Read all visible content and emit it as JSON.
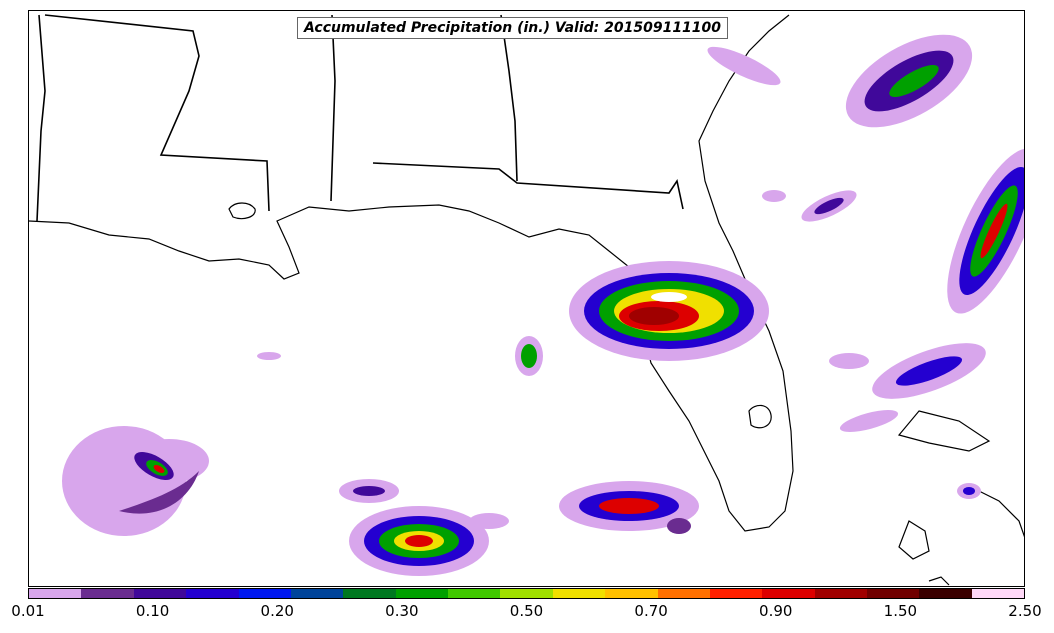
{
  "title": "Accumulated Precipitation (in.) Valid: 201509111100",
  "colorbar": {
    "colors": [
      "#d8a6ec",
      "#6a2c90",
      "#40089a",
      "#2400d0",
      "#0018f0",
      "#00449a",
      "#007820",
      "#00a000",
      "#40c800",
      "#a0e000",
      "#f0e000",
      "#ffc000",
      "#ff7000",
      "#ff2000",
      "#dd0000",
      "#a00000",
      "#700000",
      "#3a0000",
      "#ffd8f8"
    ],
    "tick_labels": [
      "0.01",
      "0.10",
      "0.20",
      "0.30",
      "0.50",
      "0.70",
      "0.90",
      "1.50",
      "2.50"
    ]
  }
}
